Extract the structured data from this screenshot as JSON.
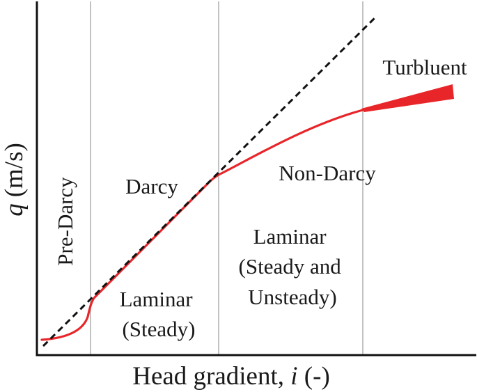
{
  "diagram": {
    "y_axis": {
      "var": "q",
      "unit": "(m/s)"
    },
    "x_axis": {
      "text": "Head gradient, ",
      "var": "i",
      "unit": " (-)"
    },
    "regions": {
      "pre_darcy": "Pre-Darcy",
      "darcy": "Darcy",
      "non_darcy": "Non-Darcy",
      "turbulent": "Turbluent"
    },
    "flow_regimes": {
      "laminar_steady": [
        "Laminar",
        "(Steady)"
      ],
      "laminar_steady_unsteady": [
        "Laminar",
        "(Steady and",
        "Unsteady)"
      ]
    },
    "colors": {
      "curve": "#e8262a",
      "reference_line": "#111111",
      "divider": "#b3b3b3",
      "axis": "#111111"
    },
    "line_styles": {
      "reference_line": "dashed"
    }
  }
}
